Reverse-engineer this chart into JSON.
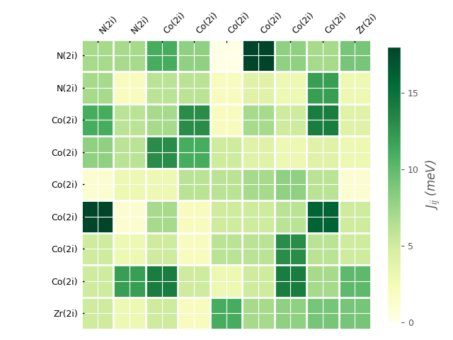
{
  "labels": [
    "N(2i)",
    "N(2i)",
    "Co(2i)",
    "Co(2i)",
    "Co(2i)",
    "Co(2i)",
    "Co(2i)",
    "Co(2i)",
    "Zr(2i)"
  ],
  "matrix": [
    [
      7,
      7,
      11,
      8,
      0,
      18,
      8,
      7,
      9
    ],
    [
      7,
      2,
      6,
      6,
      2,
      4,
      3,
      12,
      3
    ],
    [
      11,
      6,
      7,
      13,
      2,
      7,
      5,
      14,
      4
    ],
    [
      8,
      6,
      13,
      11,
      5,
      4,
      3,
      4,
      3
    ],
    [
      1,
      3,
      3,
      6,
      6,
      7,
      8,
      6,
      1
    ],
    [
      18,
      1,
      7,
      2,
      5,
      5,
      6,
      16,
      5
    ],
    [
      5,
      3,
      5,
      2,
      6,
      6,
      13,
      6,
      5
    ],
    [
      5,
      12,
      14,
      5,
      3,
      5,
      14,
      7,
      10
    ],
    [
      5,
      3,
      5,
      2,
      11,
      7,
      8,
      9,
      9
    ]
  ],
  "vmin": 0,
  "vmax": 18,
  "cbar_ticks": [
    0,
    5,
    10,
    15
  ],
  "cbar_label": "$J_{ij}$ (meV)",
  "cmap": "YlGn",
  "background_color": "#e8e8e8",
  "figsize": [
    6.4,
    4.8
  ],
  "dpi": 100,
  "xlabel_fontsize": 9,
  "ylabel_fontsize": 9,
  "cbar_label_fontsize": 12
}
